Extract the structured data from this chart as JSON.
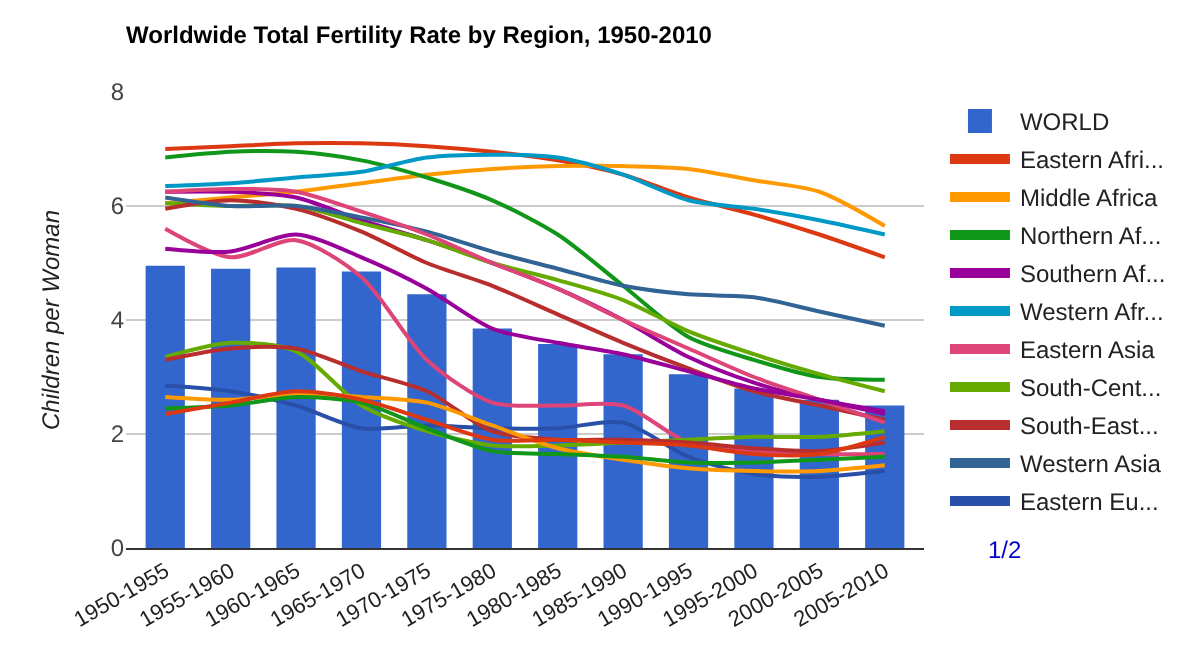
{
  "chart_data": {
    "type": "line",
    "title": "Worldwide Total Fertility Rate by Region, 1950-2010",
    "ylabel": "Children per Woman",
    "categories": [
      "1950-1955",
      "1955-1960",
      "1960-1965",
      "1965-1970",
      "1970-1975",
      "1975-1980",
      "1980-1985",
      "1985-1990",
      "1990-1995",
      "1995-2000",
      "2000-2005",
      "2005-2010"
    ],
    "ylim": [
      0,
      8
    ],
    "yticks": [
      0,
      2,
      4,
      6,
      8
    ],
    "grid": "y",
    "legend": "right",
    "marker": "none",
    "line_style": "solid",
    "annotations": [
      "1/2"
    ],
    "series": [
      {
        "name": "WORLD",
        "type": "bar",
        "color": "#3366cc",
        "values": [
          4.95,
          4.9,
          4.92,
          4.85,
          4.45,
          3.85,
          3.58,
          3.4,
          3.05,
          2.8,
          2.6,
          2.5
        ]
      },
      {
        "name": "Eastern Afri...",
        "color": "#dc3912",
        "values": [
          7.0,
          7.05,
          7.1,
          7.1,
          7.05,
          6.95,
          6.8,
          6.55,
          6.15,
          5.85,
          5.5,
          5.1
        ]
      },
      {
        "name": "Middle Africa",
        "color": "#ff9900",
        "values": [
          6.05,
          6.15,
          6.25,
          6.4,
          6.55,
          6.65,
          6.7,
          6.7,
          6.65,
          6.45,
          6.25,
          5.65
        ]
      },
      {
        "name": "Northern Af...",
        "color": "#109618",
        "values": [
          6.85,
          6.95,
          6.95,
          6.8,
          6.5,
          6.1,
          5.5,
          4.6,
          3.7,
          3.3,
          3.0,
          2.95
        ]
      },
      {
        "name": "Southern Af...",
        "color": "#990099",
        "values": [
          6.25,
          6.25,
          6.15,
          5.75,
          5.4,
          5.0,
          4.55,
          4.0,
          3.35,
          2.9,
          2.6,
          2.4
        ]
      },
      {
        "name": "Western Afr...",
        "color": "#0099c6",
        "values": [
          6.35,
          6.4,
          6.5,
          6.6,
          6.85,
          6.9,
          6.85,
          6.55,
          6.1,
          5.95,
          5.75,
          5.5
        ]
      },
      {
        "name": "Eastern Asia",
        "color": "#dd4477",
        "values": [
          5.6,
          5.1,
          5.4,
          4.75,
          3.3,
          2.55,
          2.5,
          2.5,
          1.85,
          1.7,
          1.65,
          1.65
        ]
      },
      {
        "name": "South-Cent...",
        "color": "#66aa00",
        "values": [
          6.05,
          6.0,
          6.0,
          5.7,
          5.4,
          5.0,
          4.7,
          4.35,
          3.8,
          3.4,
          3.05,
          2.75
        ]
      },
      {
        "name": "South-East...",
        "color": "#b82e2e",
        "values": [
          5.95,
          6.1,
          5.95,
          5.55,
          5.0,
          4.6,
          4.1,
          3.6,
          3.15,
          2.75,
          2.5,
          2.25
        ]
      },
      {
        "name": "Western Asia",
        "color": "#316395",
        "values": [
          6.15,
          6.0,
          6.0,
          5.8,
          5.55,
          5.2,
          4.9,
          4.6,
          4.45,
          4.4,
          4.15,
          3.9
        ]
      },
      {
        "name": "Eastern Eu...",
        "color": "#2850a8",
        "values": [
          2.85,
          2.75,
          2.5,
          2.1,
          2.15,
          2.1,
          2.1,
          2.2,
          1.6,
          1.3,
          1.25,
          1.35
        ]
      },
      {
        "color": "#dd4477",
        "values": [
          6.25,
          6.3,
          6.25,
          5.9,
          5.5,
          5.0,
          4.55,
          4.0,
          3.5,
          3.0,
          2.6,
          2.2
        ]
      },
      {
        "color": "#990099",
        "values": [
          5.25,
          5.2,
          5.5,
          5.1,
          4.55,
          3.85,
          3.6,
          3.4,
          3.1,
          2.8,
          2.6,
          2.35
        ]
      },
      {
        "color": "#66aa00",
        "values": [
          3.35,
          3.6,
          3.45,
          2.5,
          2.05,
          1.8,
          1.8,
          1.85,
          1.9,
          1.95,
          1.95,
          2.05
        ]
      },
      {
        "color": "#b82e2e",
        "values": [
          3.3,
          3.5,
          3.5,
          3.1,
          2.75,
          2.05,
          1.9,
          1.9,
          1.85,
          1.75,
          1.7,
          1.85
        ]
      },
      {
        "color": "#ff9900",
        "values": [
          2.65,
          2.6,
          2.7,
          2.65,
          2.55,
          2.15,
          1.75,
          1.55,
          1.4,
          1.35,
          1.35,
          1.45
        ]
      },
      {
        "color": "#109618",
        "values": [
          2.45,
          2.5,
          2.65,
          2.55,
          2.1,
          1.7,
          1.65,
          1.6,
          1.5,
          1.5,
          1.55,
          1.6
        ]
      },
      {
        "color": "#dc3912",
        "values": [
          2.35,
          2.55,
          2.75,
          2.6,
          2.25,
          1.9,
          1.9,
          1.85,
          1.8,
          1.65,
          1.65,
          1.95
        ]
      }
    ]
  }
}
